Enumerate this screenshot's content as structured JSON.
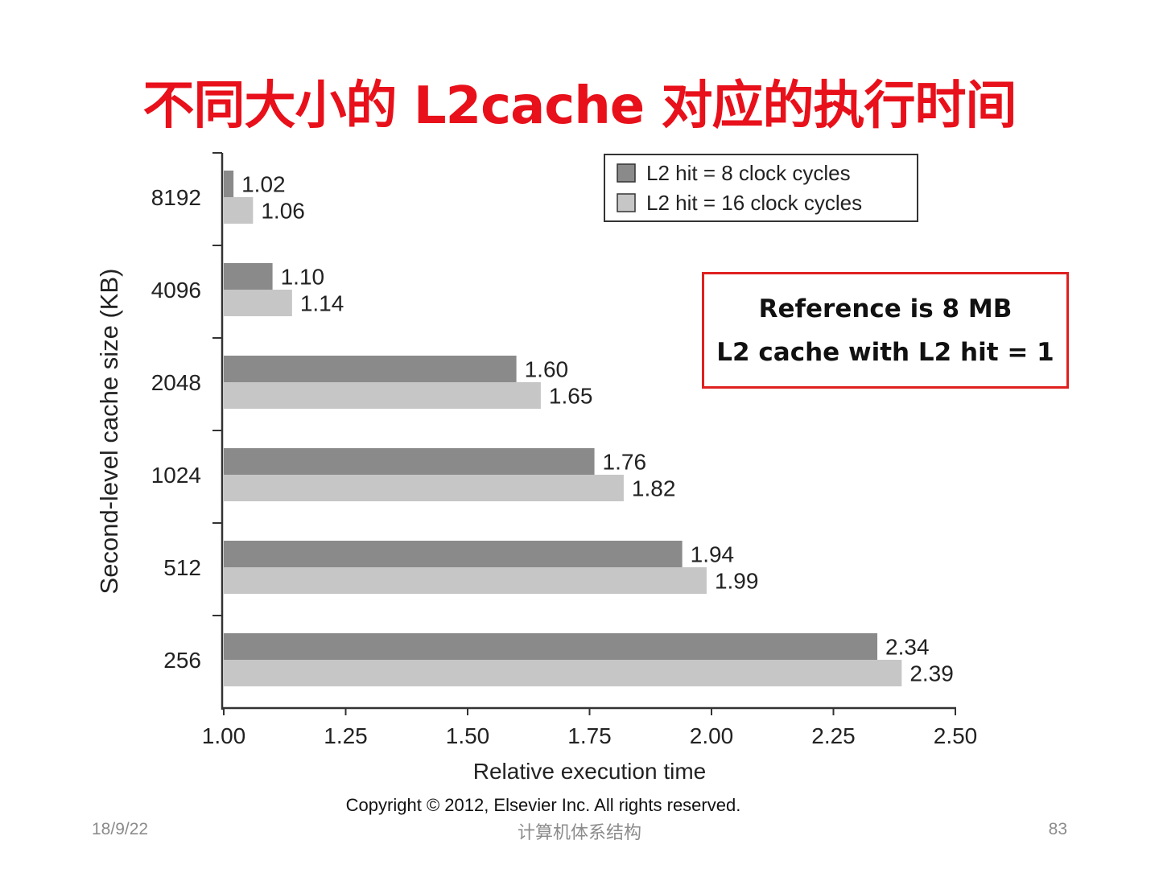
{
  "slide": {
    "title": "不同大小的 L2cache 对应的执行时间",
    "copyright": "Copyright © 2012, Elsevier Inc. All rights reserved.",
    "footer_date": "18/9/22",
    "footer_center": "计算机体系结构",
    "page_number": "83",
    "note": {
      "line1": "Reference is 8 MB",
      "line2": "L2 cache with L2 hit = 1"
    }
  },
  "colors": {
    "title": "#e8101a",
    "series_dark": "#8a8a8a",
    "series_light": "#c6c6c6",
    "note_border": "#e02020"
  },
  "chart_data": {
    "type": "bar",
    "orientation": "horizontal",
    "categories": [
      "8192",
      "4096",
      "2048",
      "1024",
      "512",
      "256"
    ],
    "series": [
      {
        "name": "L2 hit = 8 clock cycles",
        "values": [
          1.02,
          1.1,
          1.6,
          1.76,
          1.94,
          2.34
        ]
      },
      {
        "name": "L2 hit = 16 clock cycles",
        "values": [
          1.06,
          1.14,
          1.65,
          1.82,
          1.99,
          2.39
        ]
      }
    ],
    "xlabel": "Relative execution time",
    "ylabel": "Second-level cache size (KB)",
    "xlim": [
      1.0,
      2.5
    ],
    "xticks": [
      "1.00",
      "1.25",
      "1.50",
      "1.75",
      "2.00",
      "2.25",
      "2.50"
    ],
    "legend_position": "top-right",
    "grid": false
  }
}
